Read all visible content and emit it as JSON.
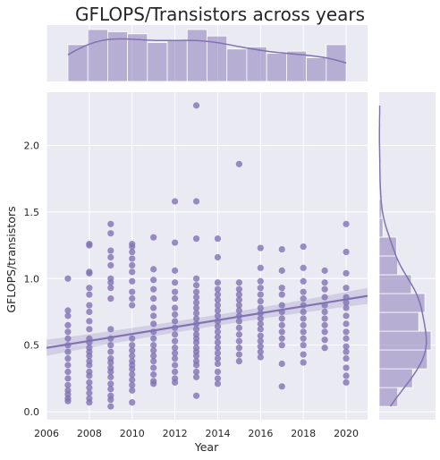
{
  "chart_data": {
    "type": "scatter",
    "title": "GFLOPS/Transistors across years",
    "xlabel": "Year",
    "ylabel": "GFLOPS/transistors",
    "xlim": [
      2006,
      2021
    ],
    "ylim": [
      -0.06,
      2.4
    ],
    "xticks": [
      "2006",
      "2008",
      "2010",
      "2012",
      "2014",
      "2016",
      "2018",
      "2020"
    ],
    "yticks": [
      "0.0",
      "0.5",
      "1.0",
      "1.5",
      "2.0"
    ],
    "grid": true,
    "background": "#eaeaf2",
    "color": "#8172b3",
    "regression": {
      "x": [
        2006,
        2021
      ],
      "y": [
        0.48,
        0.87
      ]
    },
    "points": [
      [
        2007,
        1.0
      ],
      [
        2007,
        0.76
      ],
      [
        2007,
        0.72
      ],
      [
        2007,
        0.65
      ],
      [
        2007,
        0.6
      ],
      [
        2007,
        0.55
      ],
      [
        2007,
        0.5
      ],
      [
        2007,
        0.45
      ],
      [
        2007,
        0.4
      ],
      [
        2007,
        0.35
      ],
      [
        2007,
        0.3
      ],
      [
        2007,
        0.25
      ],
      [
        2007,
        0.2
      ],
      [
        2007,
        0.16
      ],
      [
        2007,
        0.13
      ],
      [
        2007,
        0.1
      ],
      [
        2007,
        0.08
      ],
      [
        2008,
        1.26
      ],
      [
        2008,
        1.25
      ],
      [
        2008,
        1.05
      ],
      [
        2008,
        1.04
      ],
      [
        2008,
        0.93
      ],
      [
        2008,
        0.88
      ],
      [
        2008,
        0.8
      ],
      [
        2008,
        0.75
      ],
      [
        2008,
        0.68
      ],
      [
        2008,
        0.62
      ],
      [
        2008,
        0.55
      ],
      [
        2008,
        0.52
      ],
      [
        2008,
        0.48
      ],
      [
        2008,
        0.45
      ],
      [
        2008,
        0.42
      ],
      [
        2008,
        0.38
      ],
      [
        2008,
        0.35
      ],
      [
        2008,
        0.3
      ],
      [
        2008,
        0.27
      ],
      [
        2008,
        0.22
      ],
      [
        2008,
        0.18
      ],
      [
        2008,
        0.14
      ],
      [
        2008,
        0.1
      ],
      [
        2008,
        0.07
      ],
      [
        2009,
        1.41
      ],
      [
        2009,
        1.34
      ],
      [
        2009,
        1.21
      ],
      [
        2009,
        1.16
      ],
      [
        2009,
        1.1
      ],
      [
        2009,
        1.0
      ],
      [
        2009,
        0.97
      ],
      [
        2009,
        0.93
      ],
      [
        2009,
        0.85
      ],
      [
        2009,
        0.62
      ],
      [
        2009,
        0.55
      ],
      [
        2009,
        0.5
      ],
      [
        2009,
        0.45
      ],
      [
        2009,
        0.4
      ],
      [
        2009,
        0.37
      ],
      [
        2009,
        0.33
      ],
      [
        2009,
        0.3
      ],
      [
        2009,
        0.26
      ],
      [
        2009,
        0.21
      ],
      [
        2009,
        0.17
      ],
      [
        2009,
        0.12
      ],
      [
        2009,
        0.09
      ],
      [
        2009,
        0.04
      ],
      [
        2010,
        1.26
      ],
      [
        2010,
        1.24
      ],
      [
        2010,
        1.2
      ],
      [
        2010,
        1.15
      ],
      [
        2010,
        1.1
      ],
      [
        2010,
        1.05
      ],
      [
        2010,
        0.98
      ],
      [
        2010,
        0.9
      ],
      [
        2010,
        0.85
      ],
      [
        2010,
        0.8
      ],
      [
        2010,
        0.55
      ],
      [
        2010,
        0.5
      ],
      [
        2010,
        0.46
      ],
      [
        2010,
        0.42
      ],
      [
        2010,
        0.38
      ],
      [
        2010,
        0.35
      ],
      [
        2010,
        0.32
      ],
      [
        2010,
        0.28
      ],
      [
        2010,
        0.24
      ],
      [
        2010,
        0.2
      ],
      [
        2010,
        0.16
      ],
      [
        2010,
        0.07
      ],
      [
        2011,
        1.31
      ],
      [
        2011,
        1.07
      ],
      [
        2011,
        0.99
      ],
      [
        2011,
        0.92
      ],
      [
        2011,
        0.85
      ],
      [
        2011,
        0.78
      ],
      [
        2011,
        0.72
      ],
      [
        2011,
        0.66
      ],
      [
        2011,
        0.6
      ],
      [
        2011,
        0.55
      ],
      [
        2011,
        0.5
      ],
      [
        2011,
        0.46
      ],
      [
        2011,
        0.42
      ],
      [
        2011,
        0.38
      ],
      [
        2011,
        0.33
      ],
      [
        2011,
        0.28
      ],
      [
        2011,
        0.23
      ],
      [
        2011,
        0.21
      ],
      [
        2012,
        1.58
      ],
      [
        2012,
        1.27
      ],
      [
        2012,
        1.06
      ],
      [
        2012,
        0.97
      ],
      [
        2012,
        0.9
      ],
      [
        2012,
        0.85
      ],
      [
        2012,
        0.78
      ],
      [
        2012,
        0.73
      ],
      [
        2012,
        0.68
      ],
      [
        2012,
        0.63
      ],
      [
        2012,
        0.58
      ],
      [
        2012,
        0.53
      ],
      [
        2012,
        0.48
      ],
      [
        2012,
        0.44
      ],
      [
        2012,
        0.4
      ],
      [
        2012,
        0.35
      ],
      [
        2012,
        0.3
      ],
      [
        2012,
        0.25
      ],
      [
        2012,
        0.22
      ],
      [
        2013,
        2.3
      ],
      [
        2013,
        1.58
      ],
      [
        2013,
        1.3
      ],
      [
        2013,
        1.0
      ],
      [
        2013,
        0.95
      ],
      [
        2013,
        0.9
      ],
      [
        2013,
        0.86
      ],
      [
        2013,
        0.82
      ],
      [
        2013,
        0.78
      ],
      [
        2013,
        0.74
      ],
      [
        2013,
        0.7
      ],
      [
        2013,
        0.66
      ],
      [
        2013,
        0.62
      ],
      [
        2013,
        0.58
      ],
      [
        2013,
        0.55
      ],
      [
        2013,
        0.52
      ],
      [
        2013,
        0.48
      ],
      [
        2013,
        0.45
      ],
      [
        2013,
        0.42
      ],
      [
        2013,
        0.38
      ],
      [
        2013,
        0.35
      ],
      [
        2013,
        0.3
      ],
      [
        2013,
        0.26
      ],
      [
        2013,
        0.12
      ],
      [
        2014,
        1.3
      ],
      [
        2014,
        1.16
      ],
      [
        2014,
        0.97
      ],
      [
        2014,
        0.92
      ],
      [
        2014,
        0.88
      ],
      [
        2014,
        0.84
      ],
      [
        2014,
        0.8
      ],
      [
        2014,
        0.76
      ],
      [
        2014,
        0.72
      ],
      [
        2014,
        0.68
      ],
      [
        2014,
        0.64
      ],
      [
        2014,
        0.6
      ],
      [
        2014,
        0.56
      ],
      [
        2014,
        0.52
      ],
      [
        2014,
        0.48
      ],
      [
        2014,
        0.44
      ],
      [
        2014,
        0.4
      ],
      [
        2014,
        0.36
      ],
      [
        2014,
        0.3
      ],
      [
        2014,
        0.25
      ],
      [
        2014,
        0.21
      ],
      [
        2015,
        1.86
      ],
      [
        2015,
        0.97
      ],
      [
        2015,
        0.92
      ],
      [
        2015,
        0.88
      ],
      [
        2015,
        0.84
      ],
      [
        2015,
        0.8
      ],
      [
        2015,
        0.76
      ],
      [
        2015,
        0.72
      ],
      [
        2015,
        0.68
      ],
      [
        2015,
        0.63
      ],
      [
        2015,
        0.58
      ],
      [
        2015,
        0.53
      ],
      [
        2015,
        0.48
      ],
      [
        2015,
        0.43
      ],
      [
        2015,
        0.38
      ],
      [
        2016,
        1.23
      ],
      [
        2016,
        1.08
      ],
      [
        2016,
        0.98
      ],
      [
        2016,
        0.93
      ],
      [
        2016,
        0.88
      ],
      [
        2016,
        0.83
      ],
      [
        2016,
        0.78
      ],
      [
        2016,
        0.74
      ],
      [
        2016,
        0.7
      ],
      [
        2016,
        0.66
      ],
      [
        2016,
        0.62
      ],
      [
        2016,
        0.57
      ],
      [
        2016,
        0.53
      ],
      [
        2016,
        0.49
      ],
      [
        2016,
        0.45
      ],
      [
        2016,
        0.41
      ],
      [
        2017,
        1.22
      ],
      [
        2017,
        1.06
      ],
      [
        2017,
        0.93
      ],
      [
        2017,
        0.88
      ],
      [
        2017,
        0.8
      ],
      [
        2017,
        0.75
      ],
      [
        2017,
        0.7
      ],
      [
        2017,
        0.65
      ],
      [
        2017,
        0.6
      ],
      [
        2017,
        0.55
      ],
      [
        2017,
        0.5
      ],
      [
        2017,
        0.36
      ],
      [
        2017,
        0.19
      ],
      [
        2018,
        1.24
      ],
      [
        2018,
        1.08
      ],
      [
        2018,
        0.98
      ],
      [
        2018,
        0.9
      ],
      [
        2018,
        0.85
      ],
      [
        2018,
        0.8
      ],
      [
        2018,
        0.75
      ],
      [
        2018,
        0.7
      ],
      [
        2018,
        0.65
      ],
      [
        2018,
        0.6
      ],
      [
        2018,
        0.55
      ],
      [
        2018,
        0.5
      ],
      [
        2018,
        0.43
      ],
      [
        2018,
        0.37
      ],
      [
        2019,
        1.06
      ],
      [
        2019,
        0.97
      ],
      [
        2019,
        0.92
      ],
      [
        2019,
        0.86
      ],
      [
        2019,
        0.8
      ],
      [
        2019,
        0.75
      ],
      [
        2019,
        0.7
      ],
      [
        2019,
        0.65
      ],
      [
        2019,
        0.6
      ],
      [
        2019,
        0.54
      ],
      [
        2019,
        0.48
      ],
      [
        2020,
        1.41
      ],
      [
        2020,
        1.2
      ],
      [
        2020,
        1.04
      ],
      [
        2020,
        0.93
      ],
      [
        2020,
        0.86
      ],
      [
        2020,
        0.82
      ],
      [
        2020,
        0.78
      ],
      [
        2020,
        0.72
      ],
      [
        2020,
        0.66
      ],
      [
        2020,
        0.6
      ],
      [
        2020,
        0.55
      ],
      [
        2020,
        0.49
      ],
      [
        2020,
        0.45
      ],
      [
        2020,
        0.4
      ],
      [
        2020,
        0.33
      ],
      [
        2020,
        0.27
      ],
      [
        2020,
        0.22
      ]
    ]
  }
}
